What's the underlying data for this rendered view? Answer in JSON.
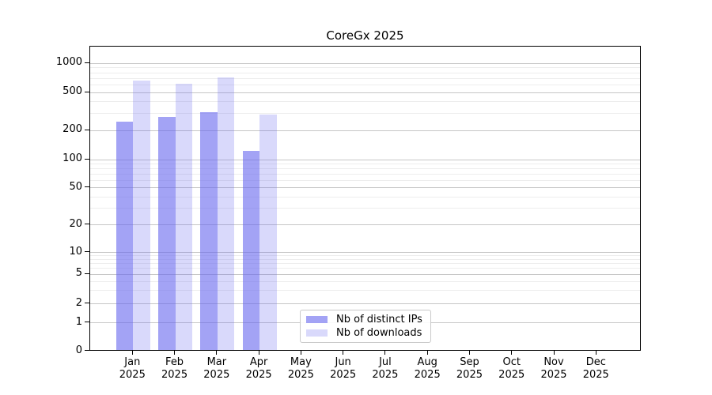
{
  "title": "CoreGx 2025",
  "chart_data": {
    "type": "bar",
    "title": "CoreGx 2025",
    "y_scale": "symlog",
    "y_ticks": [
      0,
      1,
      2,
      5,
      10,
      20,
      50,
      100,
      200,
      500,
      1000
    ],
    "y_minor_gridlines": [
      3,
      4,
      6,
      7,
      8,
      9,
      30,
      40,
      60,
      70,
      80,
      90,
      300,
      400,
      600,
      700,
      800,
      900
    ],
    "ylim": [
      0,
      1300
    ],
    "grid": "on",
    "legend_position": "lower-center",
    "categories": [
      "Jan",
      "Feb",
      "Mar",
      "Apr",
      "May",
      "Jun",
      "Jul",
      "Aug",
      "Sep",
      "Oct",
      "Nov",
      "Dec"
    ],
    "x_year_line": "2025",
    "series": [
      {
        "name": "Nb of distinct IPs",
        "color": "rgba(102,102,238,0.6)",
        "color_hex_on_white": "#a3a3f0",
        "values": [
          240,
          270,
          300,
          120,
          null,
          null,
          null,
          null,
          null,
          null,
          null,
          null
        ]
      },
      {
        "name": "Nb of downloads",
        "color": "rgba(102,102,238,0.25)",
        "color_hex_on_white": "#d9d9fb",
        "values": [
          650,
          600,
          690,
          285,
          null,
          null,
          null,
          null,
          null,
          null,
          null,
          null
        ]
      }
    ]
  },
  "colors": {
    "grid_major": "#c6c6c6",
    "grid_minor": "#ededed",
    "axis_frame": "#000000",
    "legend_border": "#c9c9c9"
  }
}
